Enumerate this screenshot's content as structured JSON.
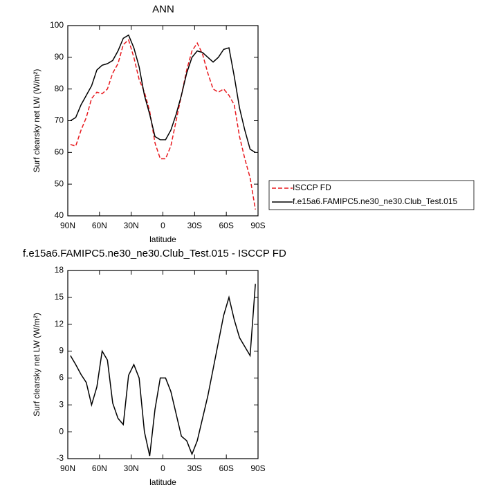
{
  "chart_data": [
    {
      "type": "line",
      "title": "ANN",
      "xlabel": "latitude",
      "ylabel": "Surf clearsky net LW (W/m²)",
      "x": [
        87.5,
        82.5,
        77.5,
        72.5,
        67.5,
        62.5,
        57.5,
        52.5,
        47.5,
        42.5,
        37.5,
        32.5,
        27.5,
        22.5,
        17.5,
        12.5,
        7.5,
        2.5,
        -2.5,
        -7.5,
        -12.5,
        -17.5,
        -22.5,
        -27.5,
        -32.5,
        -37.5,
        -42.5,
        -47.5,
        -52.5,
        -57.5,
        -62.5,
        -67.5,
        -72.5,
        -77.5,
        -82.5,
        -87.5
      ],
      "series": [
        {
          "name": "ISCCP FD",
          "color": "#e8191e",
          "dash": true,
          "values": [
            62.5,
            62,
            67,
            71,
            77,
            79,
            78.5,
            80,
            85,
            88,
            94,
            95.5,
            90,
            83,
            79,
            73,
            63,
            58,
            58,
            62,
            70,
            78,
            86,
            92,
            94.5,
            91,
            85,
            80,
            79,
            80,
            78,
            75,
            65,
            58,
            52,
            42
          ]
        },
        {
          "name": "f.e15a6.FAMIPC5.ne30_ne30.Club_Test.015",
          "color": "#000000",
          "dash": false,
          "values": [
            70,
            71,
            75,
            78,
            81,
            86,
            87.5,
            88,
            89,
            92,
            96,
            97,
            93,
            87,
            78,
            72,
            65,
            64,
            64,
            67,
            72,
            78,
            85,
            90,
            92,
            91.5,
            90,
            88.5,
            90,
            92.5,
            93,
            84,
            74,
            67,
            61,
            60
          ]
        }
      ],
      "xlim": [
        90,
        -90
      ],
      "xticks": [
        {
          "value": 90,
          "label": "90N"
        },
        {
          "value": 60,
          "label": "60N"
        },
        {
          "value": 30,
          "label": "30N"
        },
        0,
        {
          "value": -30,
          "label": "30S"
        },
        {
          "value": -60,
          "label": "60S"
        },
        {
          "value": -90,
          "label": "90S"
        }
      ],
      "ylim": [
        40,
        100
      ],
      "yticks": [
        40,
        50,
        60,
        70,
        80,
        90,
        100
      ],
      "legend": "right"
    },
    {
      "type": "line",
      "title": "f.e15a6.FAMIPC5.ne30_ne30.Club_Test.015 - ISCCP FD",
      "xlabel": "latitude",
      "ylabel": "Surf clearsky net LW (W/m²)",
      "x": [
        87.5,
        82.5,
        77.5,
        72.5,
        67.5,
        62.5,
        57.5,
        52.5,
        47.5,
        42.5,
        37.5,
        32.5,
        27.5,
        22.5,
        17.5,
        12.5,
        7.5,
        2.5,
        -2.5,
        -7.5,
        -12.5,
        -17.5,
        -22.5,
        -27.5,
        -32.5,
        -37.5,
        -42.5,
        -47.5,
        -52.5,
        -57.5,
        -62.5,
        -67.5,
        -72.5,
        -77.5,
        -82.5,
        -87.5
      ],
      "series": [
        {
          "color": "#000000",
          "dash": false,
          "values": [
            8.5,
            7.5,
            6.4,
            5.5,
            3,
            5,
            9,
            8,
            3.2,
            1.5,
            0.8,
            6.3,
            7.5,
            6,
            0,
            -2.7,
            2.5,
            6,
            6,
            4.5,
            2,
            -0.5,
            -1,
            -2.5,
            -1,
            1.5,
            4,
            7,
            10,
            13,
            15,
            12.5,
            10.5,
            9.5,
            8.5,
            16.5
          ]
        }
      ],
      "xlim": [
        90,
        -90
      ],
      "xticks": [
        {
          "value": 90,
          "label": "90N"
        },
        {
          "value": 60,
          "label": "60N"
        },
        {
          "value": 30,
          "label": "30N"
        },
        0,
        {
          "value": -30,
          "label": "30S"
        },
        {
          "value": -60,
          "label": "60S"
        },
        {
          "value": -90,
          "label": "90S"
        }
      ],
      "ylim": [
        -3,
        18
      ],
      "yticks": [
        -3,
        0,
        3,
        6,
        9,
        12,
        15,
        18
      ]
    }
  ]
}
